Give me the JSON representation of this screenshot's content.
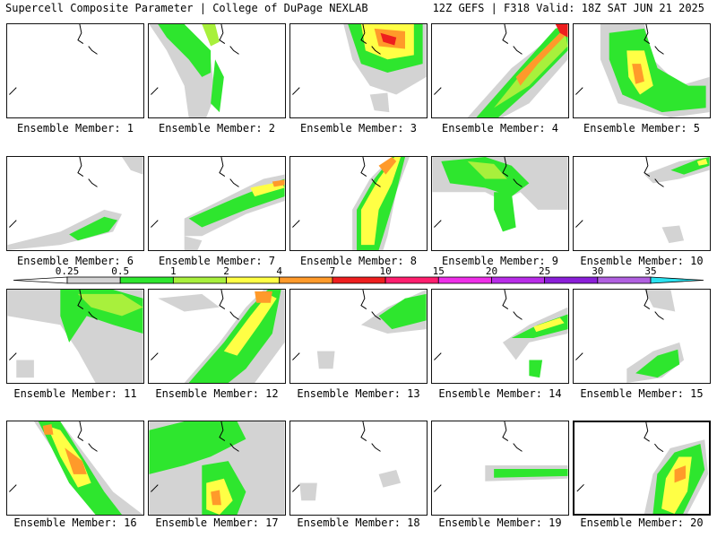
{
  "header": {
    "title_left": "Supercell Composite Parameter | College of DuPage NEXLAB",
    "title_right": "12Z GEFS | F318 Valid: 18Z SAT JUN 21 2025"
  },
  "colorbar": {
    "levels": [
      "0.25",
      "0.5",
      "1",
      "2",
      "4",
      "7",
      "10",
      "15",
      "20",
      "25",
      "30",
      "35"
    ],
    "colors": [
      "#d3d3d3",
      "#2ee62e",
      "#a8f03c",
      "#ffff45",
      "#ff9a2a",
      "#ee1e1e",
      "#ff1e6e",
      "#ee2ee8",
      "#b82ce8",
      "#8a1ed8",
      "#b060e0",
      "#2ae2f0"
    ]
  },
  "members": [
    {
      "label": "Ensemble Member: 1"
    },
    {
      "label": "Ensemble Member: 2"
    },
    {
      "label": "Ensemble Member: 3"
    },
    {
      "label": "Ensemble Member: 4"
    },
    {
      "label": "Ensemble Member: 5"
    },
    {
      "label": "Ensemble Member: 6"
    },
    {
      "label": "Ensemble Member: 7"
    },
    {
      "label": "Ensemble Member: 8"
    },
    {
      "label": "Ensemble Member: 9"
    },
    {
      "label": "Ensemble Member: 10"
    },
    {
      "label": "Ensemble Member: 11"
    },
    {
      "label": "Ensemble Member: 12"
    },
    {
      "label": "Ensemble Member: 13"
    },
    {
      "label": "Ensemble Member: 14"
    },
    {
      "label": "Ensemble Member: 15"
    },
    {
      "label": "Ensemble Member: 16"
    },
    {
      "label": "Ensemble Member: 17"
    },
    {
      "label": "Ensemble Member: 18"
    },
    {
      "label": "Ensemble Member: 19"
    },
    {
      "label": "Ensemble Member: 20"
    }
  ]
}
